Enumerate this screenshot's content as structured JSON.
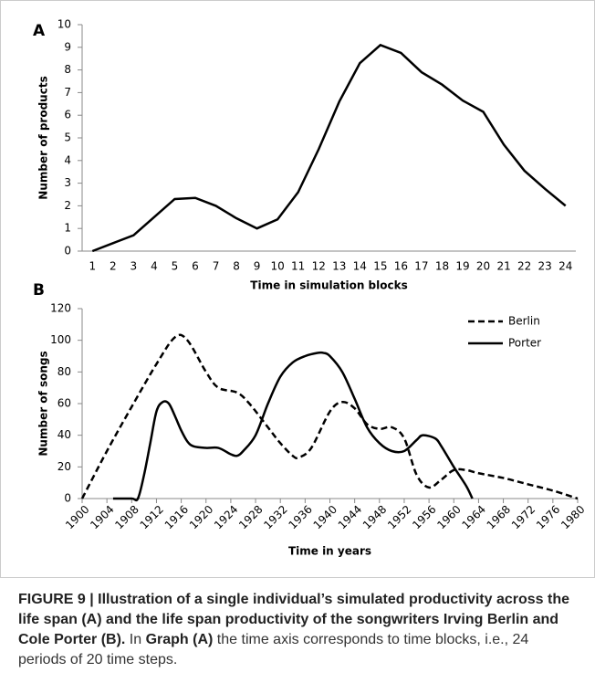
{
  "chart_data": [
    {
      "type": "line",
      "panel_label": "A",
      "ylabel": "Number of products",
      "xlabel": "Time in simulation blocks",
      "categories": [
        1,
        2,
        3,
        4,
        5,
        6,
        7,
        8,
        9,
        10,
        11,
        12,
        13,
        14,
        15,
        16,
        17,
        18,
        19,
        20,
        21,
        22,
        23,
        24
      ],
      "values": [
        0,
        0.35,
        0.7,
        1.5,
        2.3,
        2.35,
        2.0,
        1.45,
        1.0,
        1.4,
        2.6,
        4.5,
        6.6,
        8.3,
        9.1,
        8.75,
        7.9,
        7.35,
        6.65,
        6.15,
        4.7,
        3.55,
        2.75,
        2.0
      ],
      "color": "#000000",
      "ylim": [
        0,
        10
      ],
      "yticks": [
        0,
        1,
        2,
        3,
        4,
        5,
        6,
        7,
        8,
        9,
        10
      ]
    },
    {
      "type": "line",
      "panel_label": "B",
      "ylabel": "Number of songs",
      "xlabel": "Time in years",
      "xlim": [
        1900,
        1980
      ],
      "xticks": [
        1900,
        1904,
        1908,
        1912,
        1916,
        1920,
        1924,
        1928,
        1932,
        1936,
        1940,
        1944,
        1948,
        1952,
        1956,
        1960,
        1964,
        1968,
        1972,
        1976,
        1980
      ],
      "ylim": [
        0,
        120
      ],
      "yticks": [
        0,
        20,
        40,
        60,
        80,
        100,
        120
      ],
      "legend": "top-right",
      "series": [
        {
          "name": "Berlin",
          "color": "#000000",
          "dash": "dashed",
          "x": [
            1900,
            1904,
            1908,
            1912,
            1915,
            1917,
            1920,
            1922,
            1925,
            1927,
            1930,
            1932,
            1934,
            1935,
            1937,
            1940,
            1942,
            1944,
            1946,
            1948,
            1950,
            1952,
            1954,
            1956,
            1958,
            1960,
            1962,
            1964,
            1968,
            1972,
            1976,
            1980
          ],
          "values": [
            0,
            30,
            58,
            85,
            102,
            100,
            80,
            70,
            67,
            60,
            45,
            35,
            27,
            26,
            32,
            55,
            61,
            57,
            47,
            44,
            45,
            38,
            15,
            7,
            12,
            18,
            18,
            16,
            13,
            9,
            5,
            0
          ]
        },
        {
          "name": "Porter",
          "color": "#000000",
          "dash": "solid",
          "x": [
            1905,
            1908,
            1909,
            1910,
            1911,
            1912,
            1913,
            1914,
            1915,
            1916,
            1917,
            1918,
            1920,
            1922,
            1924,
            1925,
            1926,
            1928,
            1930,
            1932,
            1934,
            1936,
            1938,
            1939,
            1940,
            1942,
            1944,
            1946,
            1948,
            1950,
            1952,
            1954,
            1955,
            1957,
            1958,
            1960,
            1962,
            1963
          ],
          "values": [
            0,
            0,
            0,
            15,
            35,
            55,
            61,
            60,
            52,
            43,
            36,
            33,
            32,
            32,
            28,
            27,
            30,
            40,
            60,
            77,
            86,
            90,
            92,
            92,
            90,
            80,
            63,
            45,
            35,
            30,
            30,
            37,
            40,
            38,
            33,
            20,
            8,
            0
          ]
        }
      ]
    }
  ],
  "caption": {
    "parts": [
      {
        "text": "FIGURE 9 | Illustration of a single individual’s simulated productivity across the life span (A) and the life span productivity of the songwriters Irving Berlin and Cole Porter (B).",
        "bold": true
      },
      {
        "text": " In ",
        "bold": false
      },
      {
        "text": "Graph (A)",
        "bold": true
      },
      {
        "text": " the time axis corresponds to time blocks, i.e., 24 periods of 20 time steps.",
        "bold": false
      }
    ]
  }
}
